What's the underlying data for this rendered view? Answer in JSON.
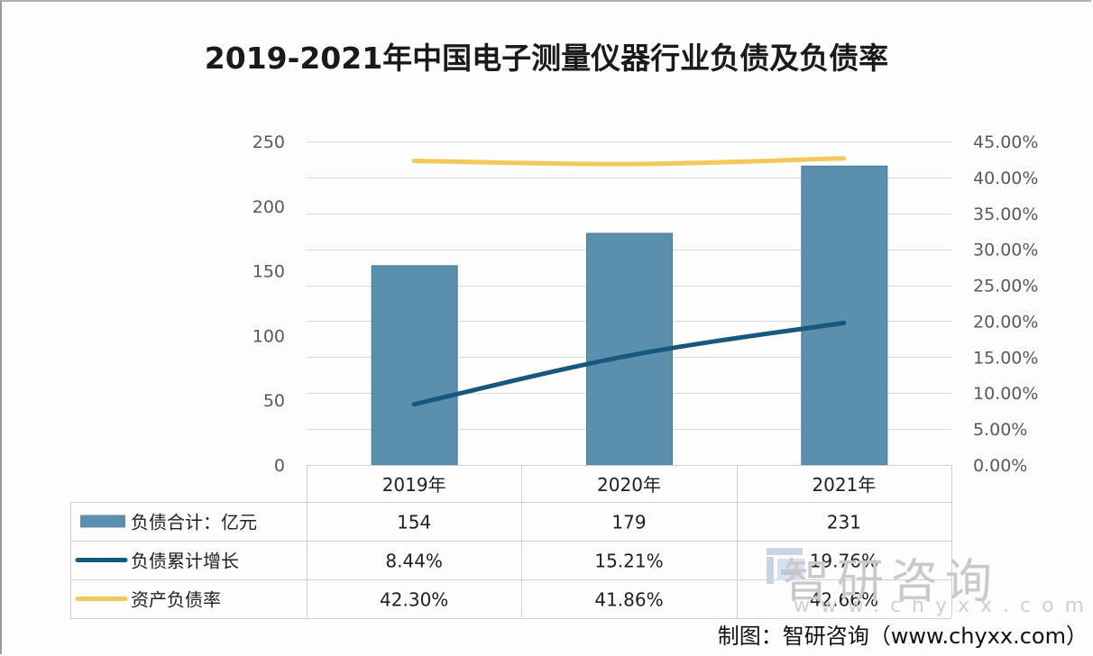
{
  "chart_data": {
    "type": "bar+line",
    "title": "2019-2021年中国电子测量仪器行业负债及负债率",
    "categories": [
      "2019年",
      "2020年",
      "2021年"
    ],
    "y_left": {
      "range": [
        0,
        250
      ],
      "ticks": [
        "250",
        "200",
        "150",
        "100",
        "50",
        "0"
      ],
      "tick_values": [
        250,
        200,
        150,
        100,
        50,
        0
      ]
    },
    "y_right": {
      "range": [
        0,
        45
      ],
      "ticks": [
        "45.00%",
        "40.00%",
        "35.00%",
        "30.00%",
        "25.00%",
        "20.00%",
        "15.00%",
        "10.00%",
        "5.00%",
        "0.00%"
      ],
      "tick_values": [
        45,
        40,
        35,
        30,
        25,
        20,
        15,
        10,
        5,
        0
      ]
    },
    "grid": true,
    "legend": "data-table-bottom",
    "series": [
      {
        "name": "负债合计：亿元",
        "type": "bar",
        "axis": "left",
        "color": "#5a8fae",
        "values": [
          154,
          179,
          231
        ],
        "labels": [
          "154",
          "179",
          "231"
        ]
      },
      {
        "name": "负债累计增长",
        "type": "line",
        "axis": "right",
        "color": "#17587f",
        "values": [
          8.44,
          15.21,
          19.76
        ],
        "labels": [
          "8.44%",
          "15.21%",
          "19.76%"
        ]
      },
      {
        "name": "资产负债率",
        "type": "line",
        "axis": "right",
        "color": "#f2c95a",
        "values": [
          42.3,
          41.86,
          42.66
        ],
        "labels": [
          "42.30%",
          "41.86%",
          "42.66%"
        ]
      }
    ]
  },
  "watermark": {
    "brand": "智研咨询",
    "url": "www.chyxx.com"
  },
  "source": "制图：智研咨询（www.chyxx.com）"
}
